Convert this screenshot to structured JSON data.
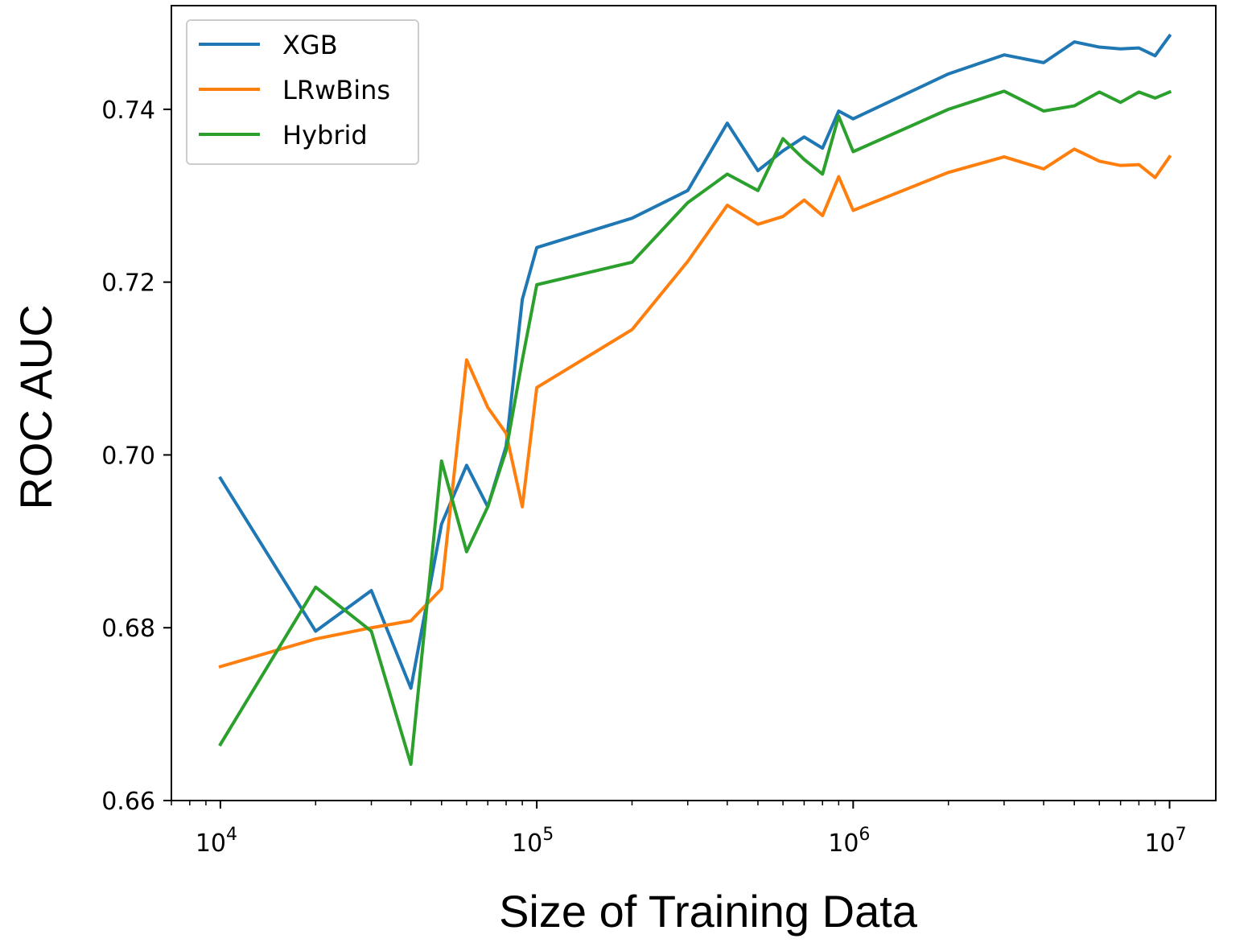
{
  "chart_data": {
    "type": "line",
    "title": "",
    "xlabel": "Size of Training Data",
    "ylabel": "ROC AUC",
    "xscale": "log",
    "xlim": [
      7000,
      14000000
    ],
    "ylim": [
      0.66,
      0.752
    ],
    "yticks": [
      0.66,
      0.68,
      0.7,
      0.72,
      0.74
    ],
    "ytick_labels": [
      "0.66",
      "0.68",
      "0.70",
      "0.72",
      "0.74"
    ],
    "xticks": [
      {
        "value": 10000,
        "base": "10",
        "exp": "4"
      },
      {
        "value": 100000,
        "base": "10",
        "exp": "5"
      },
      {
        "value": 1000000,
        "base": "10",
        "exp": "6"
      },
      {
        "value": 10000000,
        "base": "10",
        "exp": "7"
      }
    ],
    "grid": false,
    "legend_position": "top-left",
    "x": [
      10000,
      20000,
      30000,
      40000,
      50000,
      60000,
      70000,
      80000,
      90000,
      100000,
      200000,
      300000,
      400000,
      500000,
      600000,
      700000,
      800000,
      900000,
      1000000,
      2000000,
      3000000,
      4000000,
      5000000,
      6000000,
      7000000,
      8000000,
      9000000,
      10000000
    ],
    "series": [
      {
        "name": "XGB",
        "color": "#1f77b4",
        "values": [
          0.6973,
          0.6796,
          0.6843,
          0.673,
          0.692,
          0.6988,
          0.694,
          0.701,
          0.718,
          0.724,
          0.7274,
          0.7306,
          0.7384,
          0.7329,
          0.7352,
          0.7368,
          0.7355,
          0.7398,
          0.7389,
          0.7441,
          0.7463,
          0.7454,
          0.7478,
          0.7472,
          0.747,
          0.7471,
          0.7462,
          0.7485
        ]
      },
      {
        "name": "LRwBins",
        "color": "#ff7f0e",
        "values": [
          0.6755,
          0.6787,
          0.68,
          0.6808,
          0.6845,
          0.711,
          0.7055,
          0.7025,
          0.694,
          0.7078,
          0.7145,
          0.7224,
          0.7289,
          0.7267,
          0.7276,
          0.7295,
          0.7277,
          0.7322,
          0.7283,
          0.7327,
          0.7345,
          0.7331,
          0.7354,
          0.734,
          0.7335,
          0.7336,
          0.7321,
          0.7345
        ]
      },
      {
        "name": "Hybrid",
        "color": "#2ca02c",
        "values": [
          0.6665,
          0.6847,
          0.6796,
          0.6642,
          0.6993,
          0.6888,
          0.694,
          0.7005,
          0.711,
          0.7197,
          0.7223,
          0.7292,
          0.7325,
          0.7306,
          0.7366,
          0.7342,
          0.7325,
          0.7392,
          0.7351,
          0.74,
          0.7421,
          0.7398,
          0.7404,
          0.742,
          0.7408,
          0.742,
          0.7413,
          0.742
        ]
      }
    ]
  }
}
